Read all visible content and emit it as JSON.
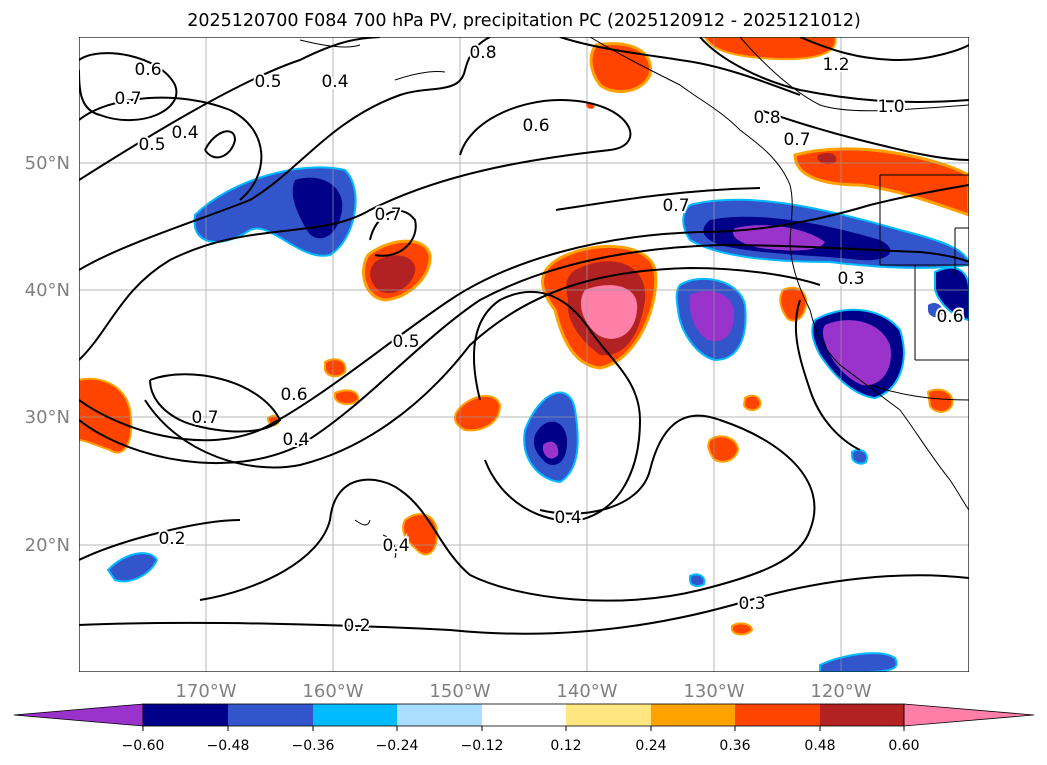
{
  "title": "2025120700 F084 700 hPa PV, precipitation PC (2025120912 - 2025121012)",
  "map": {
    "projection": "equirectangular",
    "lon_range": [
      -180,
      -110
    ],
    "lat_range": [
      10,
      60
    ],
    "gridlines": true,
    "lat_labels": [
      "50°N",
      "40°N",
      "30°N",
      "20°N"
    ],
    "lon_labels": [
      "170°W",
      "160°W",
      "150°W",
      "140°W",
      "130°W",
      "120°W"
    ],
    "label_color": "#808080",
    "contour_labels": [
      "0.6",
      "0.7",
      "0.5",
      "0.4",
      "0.5",
      "0.4",
      "0.8",
      "0.6",
      "0.7",
      "0.7",
      "1.2",
      "1.0",
      "0.8",
      "0.7",
      "0.3",
      "0.5",
      "0.6",
      "0.4",
      "0.7",
      "0.2",
      "0.4",
      "0.4",
      "0.3",
      "0.2",
      "0.6"
    ]
  },
  "colorbar": {
    "ticks": [
      "−0.60",
      "−0.48",
      "−0.36",
      "−0.24",
      "−0.12",
      "0.12",
      "0.24",
      "0.36",
      "0.48",
      "0.60"
    ],
    "colors": [
      "#9933cc",
      "#000088",
      "#3355cc",
      "#00bbff",
      "#aaddff",
      "#ffffff",
      "#ffe680",
      "#ffa200",
      "#ff4400",
      "#b22222",
      "#ff7fa8"
    ],
    "extend": "both"
  }
}
